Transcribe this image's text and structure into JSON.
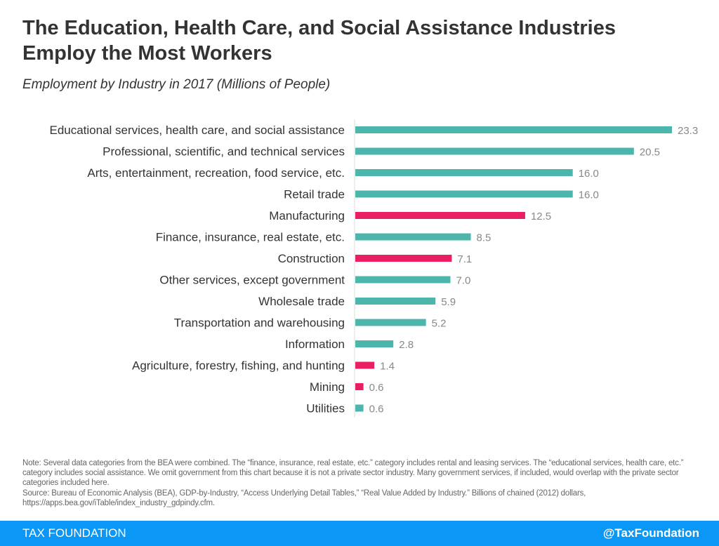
{
  "title": "The Education, Health Care, and Social Assistance Industries Employ the Most Workers",
  "subtitle": "Employment by Industry in 2017 (Millions of People)",
  "chart_data": {
    "type": "bar",
    "orientation": "horizontal",
    "categories": [
      "Educational services, health care, and social assistance",
      "Professional, scientific, and technical services",
      "Arts, entertainment, recreation, food service, etc.",
      "Retail trade",
      "Manufacturing",
      "Finance, insurance, real estate, etc.",
      "Construction",
      "Other services, except government",
      "Wholesale trade",
      "Transportation and warehousing",
      "Information",
      "Agriculture, forestry, fishing, and hunting",
      "Mining",
      "Utilities"
    ],
    "values": [
      23.3,
      20.5,
      16.0,
      16.0,
      12.5,
      8.5,
      7.1,
      7.0,
      5.9,
      5.2,
      2.8,
      1.4,
      0.6,
      0.6
    ],
    "highlight": [
      false,
      false,
      false,
      false,
      true,
      false,
      true,
      false,
      false,
      false,
      false,
      true,
      true,
      false
    ],
    "colors": {
      "default": "#4db6ac",
      "highlight": "#e91e63"
    },
    "xlim": [
      0,
      23.3
    ],
    "grid": false
  },
  "notes": {
    "note": "Note: Several data categories from the BEA were combined. The “finance, insurance, real estate, etc.” category includes rental and leasing services. The “educational services, health care, etc.” category includes social assistance. We omit government from this chart because it is not a private sector industry. Many government services, if included, would overlap with the private sector categories included here.",
    "source": "Source: Bureau of Economic Analysis (BEA), GDP-by-Industry, “Access Underlying Detail Tables,” “Real Value Added by Industry.” Billions of chained (2012) dollars, https://apps.bea.gov/iTable/index_industry_gdpindy.cfm."
  },
  "footer": {
    "brand": "TAX FOUNDATION",
    "handle": "@TaxFoundation",
    "color": "#0a97f5"
  }
}
